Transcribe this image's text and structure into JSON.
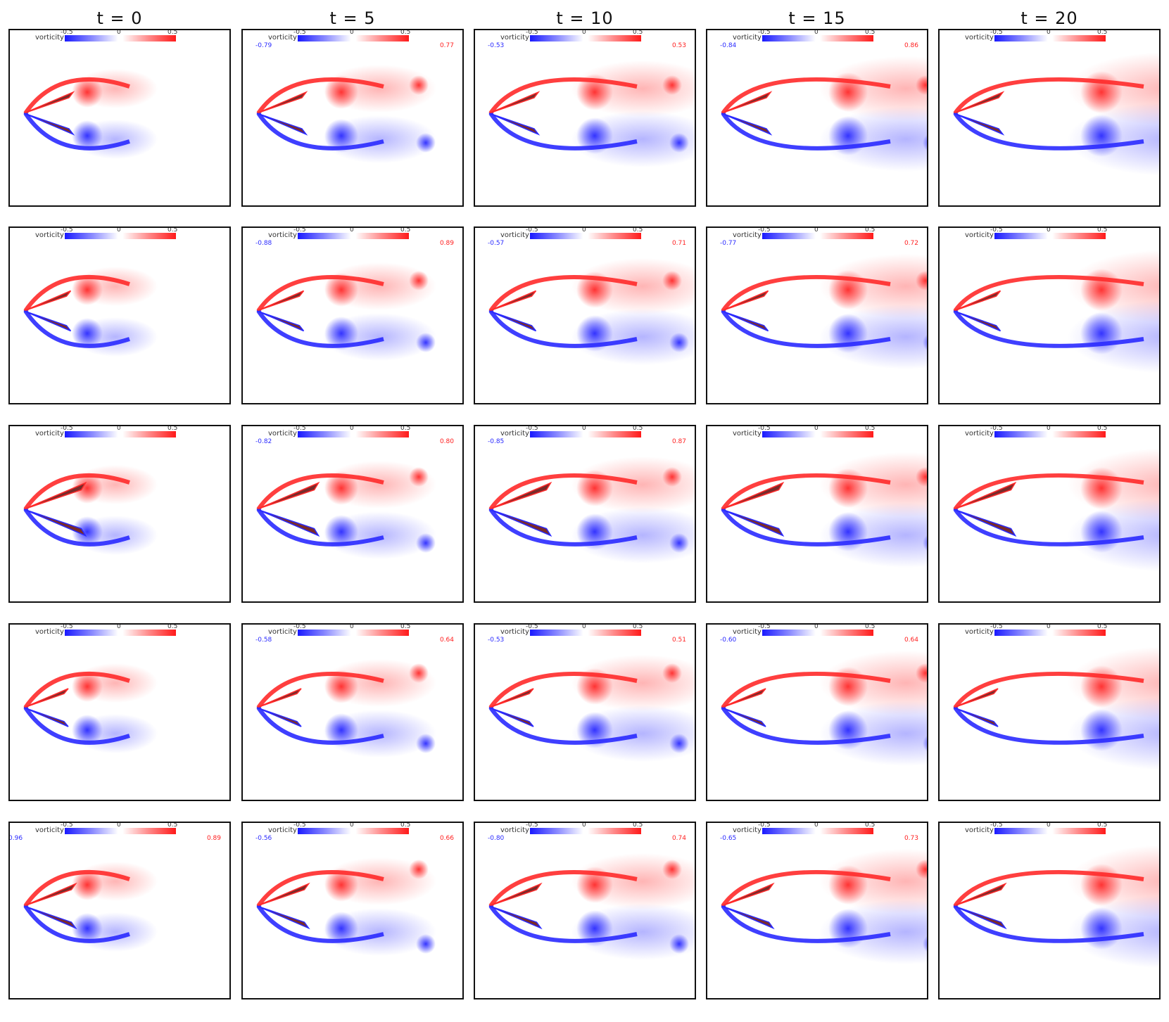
{
  "column_titles": [
    "t = 0",
    "t = 5",
    "t = 10",
    "t = 15",
    "t = 20"
  ],
  "colorbar": {
    "label": "vorticity",
    "ticks": [
      "-0.5",
      "0",
      "0.5"
    ]
  },
  "colors": {
    "positive": "#ff2a2a",
    "negative": "#2a2aff",
    "body": "#7a2a2a"
  },
  "panels": [
    [
      {
        "min": "",
        "max": ""
      },
      {
        "min": "-0.79",
        "max": "0.77"
      },
      {
        "min": "-0.53",
        "max": "0.53"
      },
      {
        "min": "-0.84",
        "max": "0.86"
      },
      {
        "min": "",
        "max": ""
      }
    ],
    [
      {
        "min": "",
        "max": ""
      },
      {
        "min": "-0.88",
        "max": "0.89"
      },
      {
        "min": "-0.57",
        "max": "0.71"
      },
      {
        "min": "-0.77",
        "max": "0.72"
      },
      {
        "min": "",
        "max": ""
      }
    ],
    [
      {
        "min": "",
        "max": ""
      },
      {
        "min": "-0.82",
        "max": "0.80"
      },
      {
        "min": "-0.85",
        "max": "0.87"
      },
      {
        "min": "",
        "max": ""
      },
      {
        "min": "",
        "max": ""
      }
    ],
    [
      {
        "min": "",
        "max": ""
      },
      {
        "min": "-0.58",
        "max": "0.64"
      },
      {
        "min": "-0.53",
        "max": "0.51"
      },
      {
        "min": "-0.60",
        "max": "0.64"
      },
      {
        "min": "",
        "max": ""
      }
    ],
    [
      {
        "min": "0.96",
        "max": "0.89"
      },
      {
        "min": "-0.56",
        "max": "0.66"
      },
      {
        "min": "-0.80",
        "max": "0.74"
      },
      {
        "min": "-0.65",
        "max": "0.73"
      },
      {
        "min": "",
        "max": ""
      }
    ]
  ]
}
